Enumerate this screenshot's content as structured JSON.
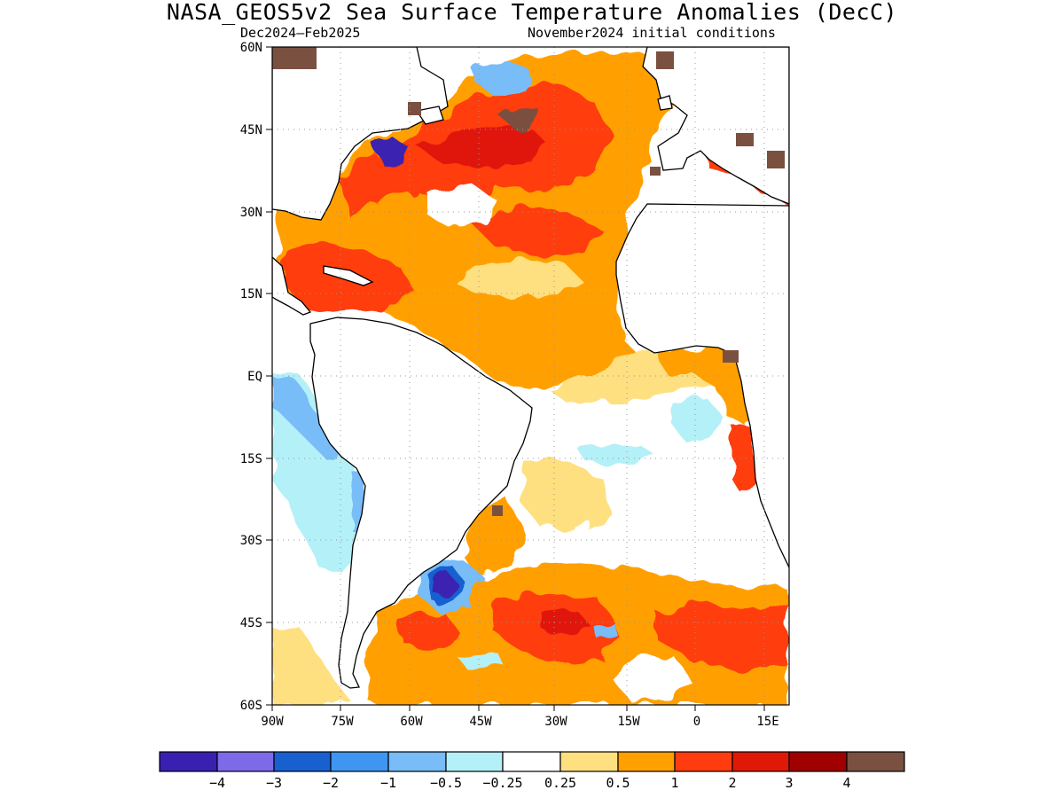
{
  "title": "NASA_GEOS5v2 Sea Surface Temperature Anomalies (DecC)",
  "subtitle_left": "Dec2024–Feb2025",
  "subtitle_right": "November2024 initial conditions",
  "map": {
    "lon_range": [
      -90,
      20
    ],
    "lat_range": [
      -60,
      60
    ],
    "gridlines": "dotted",
    "lat_ticks": [
      "60N",
      "45N",
      "30N",
      "15N",
      "EQ",
      "15S",
      "30S",
      "45S",
      "60S"
    ],
    "lon_ticks": [
      "90W",
      "75W",
      "60W",
      "45W",
      "30W",
      "15W",
      "0",
      "15E"
    ]
  },
  "colorbar": {
    "colors": [
      "#3a20b0",
      "#7c6ae8",
      "#1860d0",
      "#3e96f2",
      "#78bcf8",
      "#b4f0f8",
      "#ffffff",
      "#ffe080",
      "#ffa000",
      "#ff3c10",
      "#e01808",
      "#a00000",
      "#7a5040"
    ],
    "labels": [
      "−4",
      "−3",
      "−2",
      "−1",
      "−0.5",
      "−0.25",
      "0.25",
      "0.5",
      "1",
      "2",
      "3",
      "4"
    ]
  }
}
